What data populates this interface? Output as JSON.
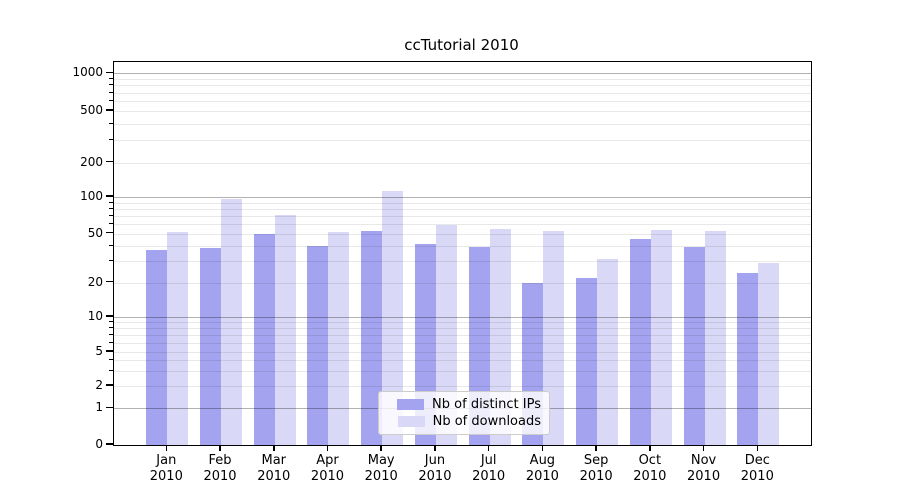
{
  "chart_data": {
    "type": "bar",
    "title": "ccTutorial 2010",
    "categories": [
      "Jan 2010",
      "Feb 2010",
      "Mar 2010",
      "Apr 2010",
      "May 2010",
      "Jun 2010",
      "Jul 2010",
      "Aug 2010",
      "Sep 2010",
      "Oct 2010",
      "Nov 2010",
      "Dec 2010"
    ],
    "series": [
      {
        "name": "Nb of distinct IPs",
        "color": "#a3a3ef",
        "values": [
          37,
          38,
          50,
          40,
          53,
          41,
          39,
          20,
          22,
          45,
          39,
          24
        ]
      },
      {
        "name": "Nb of downloads",
        "color": "#d9d9f7",
        "values": [
          52,
          97,
          71,
          52,
          112,
          59,
          55,
          53,
          31,
          54,
          53,
          29
        ]
      }
    ],
    "y_axis": {
      "scale": "log-like with 0 baseline",
      "tick_labels": [
        "0",
        "1",
        "2",
        "5",
        "10",
        "20",
        "50",
        "100",
        "200",
        "500",
        "1000"
      ],
      "range": [
        0,
        1200
      ]
    },
    "x_axis": {
      "label_line2": "2010"
    },
    "legend": {
      "position": "lower-center",
      "entries": [
        "Nb of distinct IPs",
        "Nb of downloads"
      ]
    },
    "grid": {
      "major": true,
      "minor": true
    }
  },
  "colors": {
    "distinct_ips_bar": "#a3a3ef",
    "downloads_bar": "#d9d9f7",
    "major_grid": "#b5b5b5",
    "minor_grid": "#e8e8e8",
    "spine": "#000000",
    "background": "#ffffff"
  }
}
